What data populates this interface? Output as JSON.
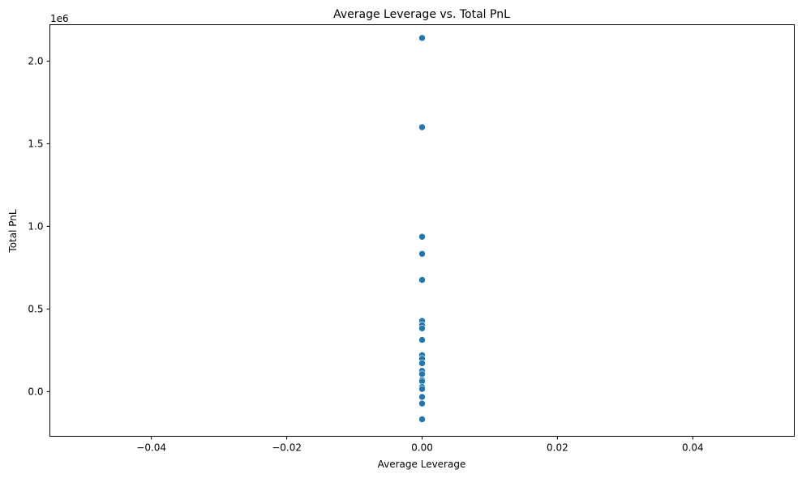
{
  "chart_data": {
    "type": "scatter",
    "title": "Average Leverage vs. Total PnL",
    "xlabel": "Average Leverage",
    "ylabel": "Total PnL",
    "y_offset_label": "1e6",
    "xlim": [
      -0.055,
      0.055
    ],
    "ylim": [
      -270000,
      2220000
    ],
    "x_ticks": [
      {
        "value": -0.04,
        "label": "−0.04"
      },
      {
        "value": -0.02,
        "label": "−0.02"
      },
      {
        "value": 0.0,
        "label": "0.00"
      },
      {
        "value": 0.02,
        "label": "0.02"
      },
      {
        "value": 0.04,
        "label": "0.04"
      }
    ],
    "y_ticks": [
      {
        "value": 0,
        "label": "0.0"
      },
      {
        "value": 500000,
        "label": "0.5"
      },
      {
        "value": 1000000,
        "label": "1.0"
      },
      {
        "value": 1500000,
        "label": "1.5"
      },
      {
        "value": 2000000,
        "label": "2.0"
      }
    ],
    "grid": false,
    "marker_color": "#1f77b4",
    "points": [
      {
        "x": 0.0,
        "y": 2140000
      },
      {
        "x": 0.0,
        "y": 1600000
      },
      {
        "x": 0.0,
        "y": 937000
      },
      {
        "x": 0.0,
        "y": 834000
      },
      {
        "x": 0.0,
        "y": 676000
      },
      {
        "x": 0.0,
        "y": 428000
      },
      {
        "x": 0.0,
        "y": 403000
      },
      {
        "x": 0.0,
        "y": 383000
      },
      {
        "x": 0.0,
        "y": 313000
      },
      {
        "x": 0.0,
        "y": 221000
      },
      {
        "x": 0.0,
        "y": 199000
      },
      {
        "x": 0.0,
        "y": 172000
      },
      {
        "x": 0.0,
        "y": 126000
      },
      {
        "x": 0.0,
        "y": 106000
      },
      {
        "x": 0.0,
        "y": 71000
      },
      {
        "x": 0.0,
        "y": 62000
      },
      {
        "x": 0.0,
        "y": 28000
      },
      {
        "x": 0.0,
        "y": 16000
      },
      {
        "x": 0.0,
        "y": -32000
      },
      {
        "x": 0.0,
        "y": -72000
      },
      {
        "x": 0.0,
        "y": -167000
      }
    ]
  }
}
